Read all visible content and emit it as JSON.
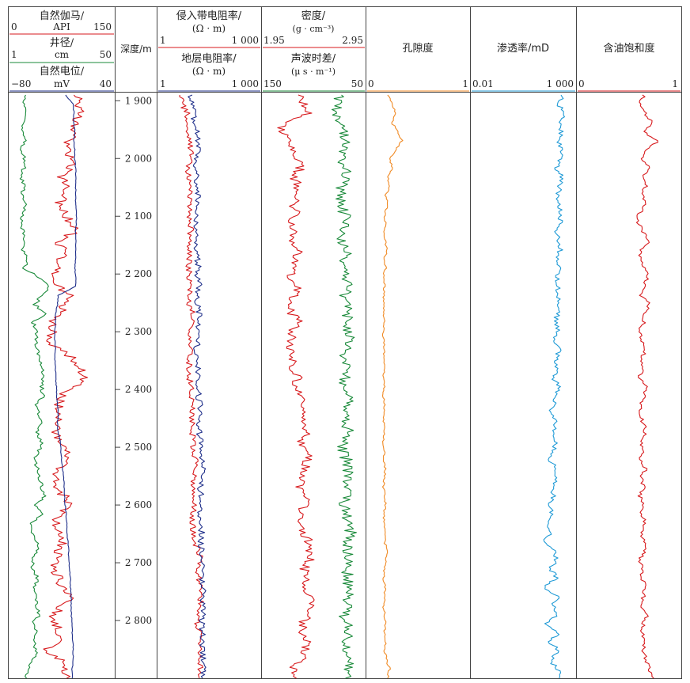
{
  "chart_data": {
    "type": "line",
    "depth_axis": {
      "label": "深度/m",
      "range": [
        1890,
        2900
      ],
      "ticks": [
        1900,
        2000,
        2100,
        2200,
        2300,
        2400,
        2500,
        2600,
        2700,
        2800
      ],
      "tick_labels": [
        "1 900",
        "2 000",
        "2 100",
        "2 200",
        "2 300",
        "2 400",
        "2 500",
        "2 600",
        "2 700",
        "2 800"
      ]
    },
    "tracks": [
      {
        "curves": [
          {
            "label": "自然伽马/",
            "unit": "API",
            "min_label": "0",
            "max_label": "150",
            "range": [
              0,
              150
            ],
            "color": "#d7191c",
            "samples": [
              100,
              101,
              100,
              97,
              94,
              85,
              82,
              90,
              85,
              75,
              82,
              80,
              70,
              78,
              88,
              95,
              70,
              78,
              72,
              68,
              62,
              72,
              85,
              75,
              80,
              60,
              62,
              55,
              72,
              92,
              100,
              110,
              95,
              75,
              70,
              75,
              68,
              65,
              70,
              80,
              80,
              70,
              67,
              60,
              80,
              88,
              70,
              65,
              70,
              75,
              72,
              70,
              60,
              75,
              72,
              90,
              78,
              62,
              65,
              72,
              70,
              52,
              75,
              80,
              82
            ]
          },
          {
            "label": "井径/",
            "unit": "cm",
            "min_label": "1",
            "max_label": "50",
            "range": [
              1,
              50
            ],
            "color": "#1a8a3a",
            "samples": [
              8,
              8,
              9,
              8,
              7,
              8,
              6,
              8,
              8,
              6,
              8,
              7,
              8,
              8,
              6,
              8,
              8,
              7,
              10,
              8,
              15,
              20,
              16,
              13,
              18,
              12,
              14,
              13,
              14,
              15,
              17,
              17,
              16,
              17,
              13,
              15,
              16,
              14,
              16,
              15,
              13,
              14,
              15,
              16,
              18,
              13,
              16,
              11,
              12,
              14,
              14,
              12,
              12,
              14,
              13,
              13,
              14,
              15,
              12,
              14,
              12,
              14,
              12,
              9,
              9
            ]
          },
          {
            "label": "自然电位/",
            "unit": "mV",
            "min_label": "−80",
            "max_label": "40",
            "range": [
              -80,
              40
            ],
            "color": "#1f2f8a",
            "samples": [
              -16,
              -7,
              -6,
              -6,
              -5,
              -6,
              -5,
              -5,
              -4,
              -4,
              -4,
              -4,
              -4,
              -3,
              -3,
              -4,
              -4,
              -4,
              -4,
              -5,
              -4,
              -4,
              -24,
              -25,
              -27,
              -27,
              -28,
              -28,
              -27,
              -28,
              -27,
              -27,
              -26,
              -26,
              -25,
              -24,
              -25,
              -24,
              -22,
              -21,
              -20,
              -19,
              -18,
              -17,
              -17,
              -16,
              -15,
              -14,
              -14,
              -13,
              -12,
              -12,
              -11,
              -10,
              -10,
              -9,
              -9,
              -9,
              -8,
              -8,
              -7,
              -7,
              -7,
              -8,
              -8
            ]
          }
        ]
      },
      {
        "curves": [
          {
            "label": "侵入带电阻率/",
            "unit": "(Ω · m)",
            "min_label": "1",
            "max_label": "1 000",
            "range": [
              1,
              1000
            ],
            "scale": "log",
            "color": "#d7191c",
            "samples": [
              5,
              5,
              7,
              6,
              7,
              8,
              9,
              9,
              7,
              8,
              8,
              9,
              9,
              8,
              9,
              9,
              8,
              8,
              8,
              8,
              8,
              9,
              8,
              8,
              11,
              10,
              9,
              8,
              9,
              8,
              8,
              8,
              10,
              9,
              10,
              10,
              10,
              10,
              11,
              10,
              13,
              12,
              11,
              10,
              12,
              12,
              10,
              10,
              11,
              11,
              16,
              17,
              15,
              16,
              17,
              18,
              17,
              16,
              14,
              16,
              15,
              17,
              16,
              17,
              16
            ]
          },
          {
            "label": "地层电阻率/",
            "unit": "(Ω · m)",
            "min_label": "1",
            "max_label": "1 000",
            "range": [
              1,
              1000
            ],
            "scale": "log",
            "color": "#1f2f8a",
            "samples": [
              9,
              10,
              12,
              11,
              14,
              15,
              14,
              13,
              12,
              13,
              14,
              15,
              14,
              12,
              14,
              13,
              14,
              13,
              14,
              15,
              14,
              16,
              13,
              14,
              16,
              15,
              14,
              15,
              13,
              14,
              15,
              14,
              16,
              15,
              17,
              16,
              15,
              16,
              18,
              17,
              20,
              22,
              21,
              17,
              18,
              19,
              17,
              18,
              19,
              17,
              19,
              20,
              19,
              18,
              20,
              21,
              20,
              20,
              19,
              20,
              19,
              21,
              20,
              21,
              20
            ]
          }
        ]
      },
      {
        "curves": [
          {
            "label": "密度/",
            "unit": "(g · cm⁻³)",
            "min_label": "1.95",
            "max_label": "2.95",
            "range": [
              1.95,
              2.95
            ],
            "color": "#d7191c",
            "samples": [
              2.3,
              2.35,
              2.4,
              2.18,
              2.12,
              2.2,
              2.25,
              2.28,
              2.32,
              2.26,
              2.3,
              2.28,
              2.25,
              2.3,
              2.22,
              2.27,
              2.25,
              2.3,
              2.24,
              2.28,
              2.22,
              2.3,
              2.25,
              2.2,
              2.24,
              2.3,
              2.24,
              2.22,
              2.2,
              2.25,
              2.24,
              2.3,
              2.26,
              2.32,
              2.3,
              2.35,
              2.33,
              2.38,
              2.34,
              2.36,
              2.4,
              2.36,
              2.33,
              2.3,
              2.38,
              2.35,
              2.32,
              2.3,
              2.34,
              2.4,
              2.38,
              2.42,
              2.36,
              2.35,
              2.38,
              2.4,
              2.42,
              2.38,
              2.35,
              2.33,
              2.4,
              2.36,
              2.32,
              2.25,
              2.28
            ]
          },
          {
            "label": "声波时差/",
            "unit": "(μ s · m⁻¹)",
            "min_label": "150",
            "max_label": "50",
            "range": [
              150,
              50
            ],
            "color": "#1a8a3a",
            "samples": [
              75,
              74,
              78,
              72,
              70,
              68,
              72,
              74,
              70,
              68,
              72,
              75,
              73,
              70,
              66,
              70,
              72,
              68,
              70,
              72,
              66,
              68,
              70,
              65,
              66,
              68,
              65,
              66,
              68,
              70,
              66,
              68,
              72,
              68,
              66,
              70,
              68,
              65,
              70,
              72,
              68,
              66,
              64,
              68,
              66,
              70,
              68,
              66,
              64,
              68,
              66,
              64,
              66,
              68,
              65,
              64,
              68,
              70,
              66,
              66,
              68,
              66,
              64,
              68,
              69
            ]
          }
        ]
      },
      {
        "curves": [
          {
            "label": "孔隙度",
            "unit": "",
            "min_label": "0",
            "max_label": "1",
            "range": [
              0,
              1
            ],
            "color": "#f08a24",
            "samples": [
              0.2,
              0.25,
              0.28,
              0.24,
              0.3,
              0.34,
              0.28,
              0.22,
              0.25,
              0.2,
              0.22,
              0.18,
              0.2,
              0.17,
              0.18,
              0.17,
              0.18,
              0.19,
              0.17,
              0.18,
              0.16,
              0.17,
              0.16,
              0.17,
              0.16,
              0.17,
              0.16,
              0.16,
              0.17,
              0.16,
              0.17,
              0.16,
              0.17,
              0.16,
              0.17,
              0.17,
              0.16,
              0.17,
              0.16,
              0.17,
              0.16,
              0.18,
              0.17,
              0.16,
              0.17,
              0.18,
              0.16,
              0.17,
              0.18,
              0.17,
              0.2,
              0.18,
              0.17,
              0.16,
              0.18,
              0.17,
              0.16,
              0.17,
              0.18,
              0.17,
              0.18,
              0.17,
              0.19,
              0.22,
              0.2
            ]
          }
        ]
      },
      {
        "curves": [
          {
            "label": "渗透率/mD",
            "unit": "",
            "min_label": "0.01",
            "max_label": "1 000",
            "range": [
              0.01,
              1000
            ],
            "scale": "log",
            "color": "#1f9ad6",
            "samples": [
              250,
              150,
              280,
              180,
              220,
              150,
              240,
              200,
              120,
              220,
              180,
              140,
              200,
              160,
              220,
              120,
              150,
              190,
              140,
              180,
              120,
              160,
              130,
              170,
              140,
              110,
              150,
              100,
              160,
              120,
              130,
              90,
              150,
              110,
              100,
              60,
              130,
              80,
              120,
              90,
              60,
              110,
              120,
              70,
              100,
              40,
              90,
              50,
              80,
              30,
              100,
              120,
              60,
              140,
              30,
              160,
              80,
              140,
              40,
              170,
              50,
              180,
              60,
              150,
              170
            ]
          }
        ]
      },
      {
        "curves": [
          {
            "label": "含油饱和度",
            "unit": "",
            "min_label": "0",
            "max_label": "1",
            "range": [
              0,
              1
            ],
            "color": "#d7191c",
            "samples": [
              0.65,
              0.6,
              0.66,
              0.72,
              0.64,
              0.78,
              0.68,
              0.62,
              0.7,
              0.64,
              0.66,
              0.62,
              0.66,
              0.6,
              0.58,
              0.64,
              0.7,
              0.62,
              0.6,
              0.66,
              0.68,
              0.64,
              0.62,
              0.7,
              0.66,
              0.64,
              0.6,
              0.62,
              0.66,
              0.62,
              0.64,
              0.6,
              0.66,
              0.64,
              0.62,
              0.6,
              0.64,
              0.66,
              0.62,
              0.64,
              0.6,
              0.66,
              0.62,
              0.64,
              0.6,
              0.64,
              0.62,
              0.66,
              0.62,
              0.64,
              0.66,
              0.6,
              0.64,
              0.62,
              0.66,
              0.64,
              0.62,
              0.68,
              0.64,
              0.62,
              0.66,
              0.64,
              0.66,
              0.7,
              0.74
            ]
          }
        ]
      }
    ]
  }
}
